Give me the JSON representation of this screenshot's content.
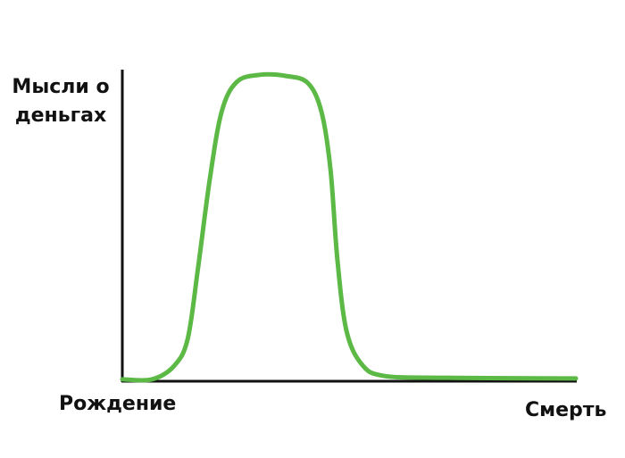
{
  "chart_data": {
    "type": "line",
    "y_label": "Мысли о деньгах",
    "x_start_label": "Рождение",
    "x_end_label": "Смерть",
    "xlim": [
      0,
      100
    ],
    "ylim": [
      0,
      100
    ],
    "series": [
      {
        "color": "#5cb946",
        "x": [
          0,
          6.5,
          11.4,
          14.4,
          16.7,
          19.3,
          21.9,
          25.2,
          30.1,
          36.0,
          40.9,
          43.9,
          45.9,
          47.4,
          49.4,
          52.8,
          57.7,
          71.5,
          100
        ],
        "values": [
          0.6,
          0.6,
          4.9,
          13.5,
          36.4,
          65.0,
          86.5,
          96.0,
          98.3,
          98.0,
          95.7,
          86.5,
          67.9,
          39.3,
          16.3,
          5.4,
          1.7,
          1.1,
          0.9
        ]
      }
    ]
  }
}
